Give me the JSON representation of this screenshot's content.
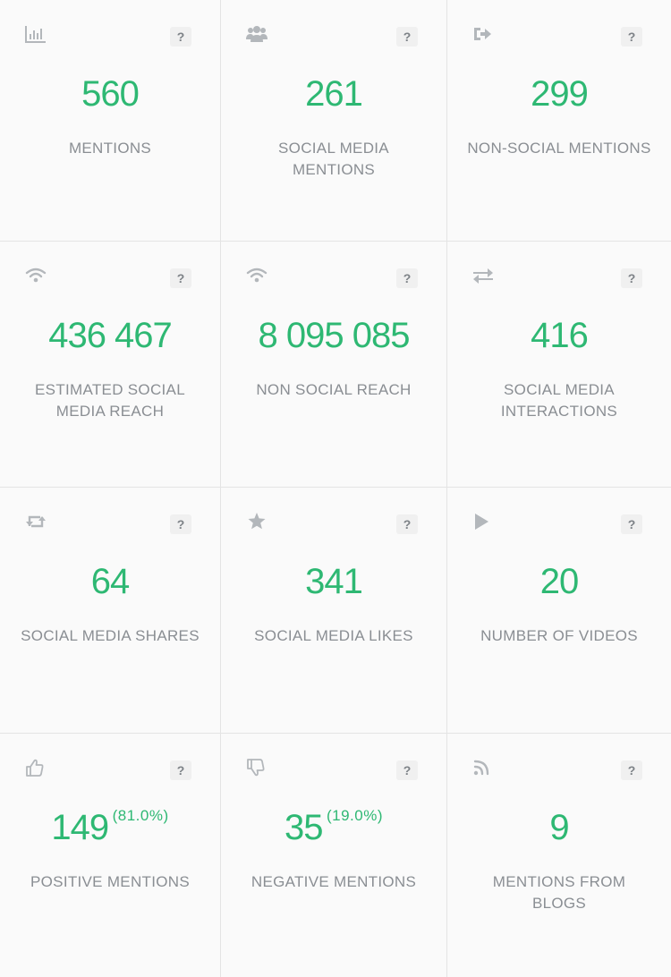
{
  "cards": [
    {
      "icon": "bar-chart-icon",
      "value": "560",
      "label": "MENTIONS",
      "help": "?"
    },
    {
      "icon": "users-icon",
      "value": "261",
      "label": "SOCIAL MEDIA MENTIONS",
      "help": "?"
    },
    {
      "icon": "sign-out-icon",
      "value": "299",
      "label": "NON-SOCIAL MENTIONS",
      "help": "?"
    },
    {
      "icon": "wifi-icon",
      "value": "436 467",
      "label": "ESTIMATED SOCIAL MEDIA REACH",
      "help": "?"
    },
    {
      "icon": "wifi-icon",
      "value": "8 095 085",
      "label": "NON SOCIAL REACH",
      "help": "?"
    },
    {
      "icon": "exchange-icon",
      "value": "416",
      "label": "SOCIAL MEDIA INTERACTIONS",
      "help": "?"
    },
    {
      "icon": "retweet-icon",
      "value": "64",
      "label": "SOCIAL MEDIA SHARES",
      "help": "?"
    },
    {
      "icon": "star-icon",
      "value": "341",
      "label": "SOCIAL MEDIA LIKES",
      "help": "?"
    },
    {
      "icon": "play-icon",
      "value": "20",
      "label": "NUMBER OF VIDEOS",
      "help": "?"
    },
    {
      "icon": "thumbs-up-icon",
      "value": "149",
      "percent": "(81.0%)",
      "label": "POSITIVE MENTIONS",
      "help": "?"
    },
    {
      "icon": "thumbs-down-icon",
      "value": "35",
      "percent": "(19.0%)",
      "label": "NEGATIVE MENTIONS",
      "help": "?"
    },
    {
      "icon": "rss-icon",
      "value": "9",
      "label": "MENTIONS FROM BLOGS",
      "help": "?"
    }
  ],
  "colors": {
    "value": "#2eb873",
    "label": "#8a8e93",
    "icon": "#b3b7bb",
    "background": "#fafafa",
    "divider": "#e4e4e4"
  }
}
